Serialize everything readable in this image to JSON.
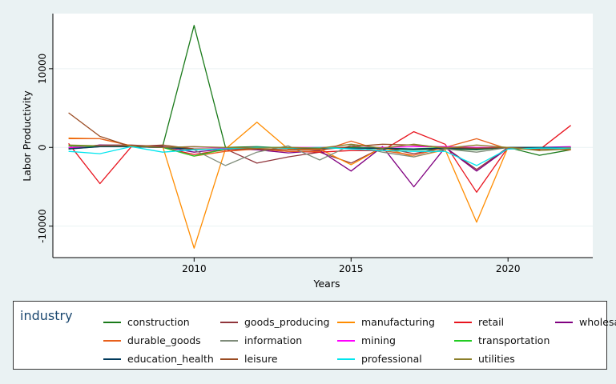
{
  "chart_data": {
    "type": "line",
    "xlabel": "Years",
    "ylabel": "Labor Productivity",
    "xlim": [
      2005.5,
      2022.7
    ],
    "ylim": [
      -14000,
      17000
    ],
    "xticks": [
      2010,
      2015,
      2020
    ],
    "yticks": [
      -10000,
      0,
      10000
    ],
    "grid": true,
    "legend_title": "industry",
    "legend_position": "bottom",
    "x": [
      2006,
      2007,
      2008,
      2009,
      2010,
      2011,
      2012,
      2013,
      2014,
      2015,
      2016,
      2017,
      2018,
      2019,
      2020,
      2021,
      2022
    ],
    "series": [
      {
        "name": "construction",
        "color": "#1a7a1a",
        "values": [
          0,
          200,
          100,
          200,
          15500,
          0,
          100,
          -100,
          0,
          0,
          -200,
          -300,
          -200,
          -300,
          0,
          -1000,
          -300
        ]
      },
      {
        "name": "goods_producing",
        "color": "#90353b",
        "values": [
          -100,
          300,
          300,
          100,
          -200,
          -200,
          -2000,
          -1200,
          -600,
          -2000,
          0,
          -800,
          0,
          -2800,
          0,
          -200,
          -300
        ]
      },
      {
        "name": "manufacturing",
        "color": "#ff8c00",
        "values": [
          1200,
          1100,
          200,
          100,
          -12800,
          -200,
          3200,
          -200,
          -200,
          -2200,
          0,
          -1200,
          -300,
          -9500,
          0,
          0,
          -200
        ]
      },
      {
        "name": "retail",
        "color": "#e8141e",
        "values": [
          500,
          -4600,
          100,
          0,
          -900,
          -300,
          -200,
          -500,
          -600,
          -400,
          -400,
          2000,
          400,
          -5700,
          0,
          -300,
          2800
        ]
      },
      {
        "name": "wholesale",
        "color": "#800080",
        "values": [
          -200,
          300,
          200,
          100,
          -600,
          -200,
          -300,
          -700,
          -400,
          -3000,
          100,
          -5000,
          0,
          -3000,
          -100,
          -100,
          0
        ]
      },
      {
        "name": "durable_goods",
        "color": "#e8601c",
        "values": [
          1100,
          1100,
          200,
          0,
          -1100,
          -500,
          -200,
          -500,
          -500,
          800,
          -400,
          -1000,
          0,
          1100,
          -200,
          -200,
          -300
        ]
      },
      {
        "name": "information",
        "color": "#7f8c7a",
        "values": [
          -200,
          100,
          100,
          0,
          -300,
          -2300,
          -600,
          200,
          -1600,
          300,
          -600,
          -1200,
          -200,
          -600,
          0,
          -200,
          -200
        ]
      },
      {
        "name": "mining",
        "color": "#ff00ff",
        "values": [
          0,
          200,
          100,
          0,
          100,
          -100,
          0,
          0,
          0,
          0,
          0,
          100,
          100,
          0,
          0,
          0,
          100
        ]
      },
      {
        "name": "transportation",
        "color": "#22cc22",
        "values": [
          200,
          100,
          100,
          0,
          -1100,
          -200,
          0,
          0,
          -100,
          0,
          -100,
          -200,
          0,
          -200,
          0,
          0,
          -100
        ]
      },
      {
        "name": "education_health",
        "color": "#003a5c",
        "values": [
          -200,
          100,
          100,
          0,
          -200,
          -200,
          0,
          -100,
          -100,
          -100,
          -100,
          -200,
          -100,
          -200,
          0,
          0,
          0
        ]
      },
      {
        "name": "leisure",
        "color": "#9a4b22",
        "values": [
          4400,
          1400,
          100,
          300,
          -200,
          -200,
          -200,
          -300,
          -300,
          100,
          400,
          300,
          0,
          -100,
          0,
          -200,
          0
        ]
      },
      {
        "name": "professional",
        "color": "#00e5ee",
        "values": [
          -500,
          -800,
          100,
          -600,
          -300,
          -200,
          0,
          -100,
          0,
          -200,
          -400,
          -500,
          -500,
          -2300,
          -200,
          -100,
          -100
        ]
      },
      {
        "name": "utilities",
        "color": "#8c7f2a",
        "values": [
          300,
          200,
          200,
          0,
          100,
          0,
          -100,
          0,
          -100,
          400,
          -100,
          400,
          -100,
          300,
          0,
          -400,
          -200
        ]
      }
    ]
  }
}
